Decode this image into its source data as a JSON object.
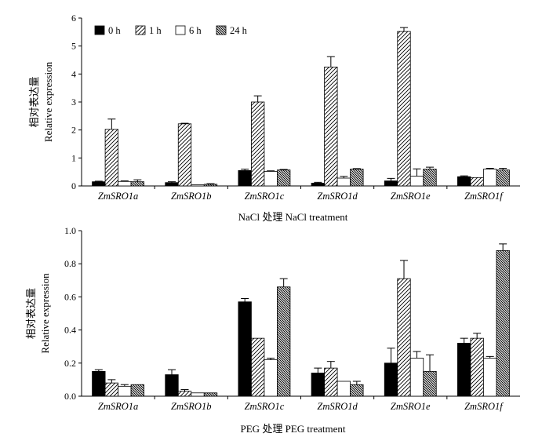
{
  "chart_data": [
    {
      "type": "bar",
      "xlabel": "NaCl 处理 NaCl treatment",
      "ylabel": [
        "相对表达量",
        "Relative expression"
      ],
      "ylim": [
        0,
        6
      ],
      "yticks": [
        "0",
        "1",
        "2",
        "3",
        "4",
        "5",
        "6"
      ],
      "categories": [
        "ZmSRO1a",
        "ZmSRO1b",
        "ZmSRO1c",
        "ZmSRO1d",
        "ZmSRO1e",
        "ZmSRO1f"
      ],
      "legend_position": "top-left",
      "series": [
        {
          "name": "0 h",
          "pattern": "solid",
          "values": [
            0.15,
            0.12,
            0.55,
            0.1,
            0.18,
            0.33
          ],
          "errors": [
            0.02,
            0.03,
            0.05,
            0.03,
            0.09,
            0.03
          ]
        },
        {
          "name": "1 h",
          "pattern": "hatch",
          "values": [
            2.02,
            2.22,
            3.0,
            4.25,
            5.52,
            0.3
          ],
          "errors": [
            0.37,
            0.02,
            0.22,
            0.37,
            0.14,
            0.0
          ]
        },
        {
          "name": "6 h",
          "pattern": "empty",
          "values": [
            0.16,
            0.04,
            0.52,
            0.28,
            0.35,
            0.6
          ],
          "errors": [
            0.02,
            0.0,
            0.02,
            0.06,
            0.26,
            0.03
          ]
        },
        {
          "name": "24 h",
          "pattern": "dense-hatch",
          "values": [
            0.15,
            0.06,
            0.57,
            0.6,
            0.6,
            0.57
          ],
          "errors": [
            0.07,
            0.02,
            0.02,
            0.02,
            0.07,
            0.06
          ]
        }
      ]
    },
    {
      "type": "bar",
      "xlabel": "PEG 处理 PEG treatment",
      "ylabel": [
        "相对表达量",
        "Relative expression"
      ],
      "ylim": [
        0,
        1.0
      ],
      "yticks": [
        "0.0",
        "0.2",
        "0.4",
        "0.6",
        "0.8",
        "1.0"
      ],
      "categories": [
        "ZmSRO1a",
        "ZmSRO1b",
        "ZmSRO1c",
        "ZmSRO1d",
        "ZmSRO1e",
        "ZmSRO1f"
      ],
      "series": [
        {
          "name": "0 h",
          "pattern": "solid",
          "values": [
            0.15,
            0.13,
            0.57,
            0.14,
            0.2,
            0.32
          ],
          "errors": [
            0.01,
            0.03,
            0.02,
            0.03,
            0.09,
            0.03
          ]
        },
        {
          "name": "1 h",
          "pattern": "hatch",
          "values": [
            0.08,
            0.03,
            0.35,
            0.17,
            0.71,
            0.35
          ],
          "errors": [
            0.02,
            0.01,
            0.0,
            0.04,
            0.11,
            0.03
          ]
        },
        {
          "name": "6 h",
          "pattern": "empty",
          "values": [
            0.06,
            0.02,
            0.22,
            0.09,
            0.23,
            0.23
          ],
          "errors": [
            0.01,
            0.0,
            0.01,
            0.0,
            0.04,
            0.01
          ]
        },
        {
          "name": "24 h",
          "pattern": "dense-hatch",
          "values": [
            0.07,
            0.02,
            0.66,
            0.07,
            0.15,
            0.88
          ],
          "errors": [
            0.0,
            0.0,
            0.05,
            0.02,
            0.1,
            0.04
          ]
        }
      ]
    }
  ]
}
